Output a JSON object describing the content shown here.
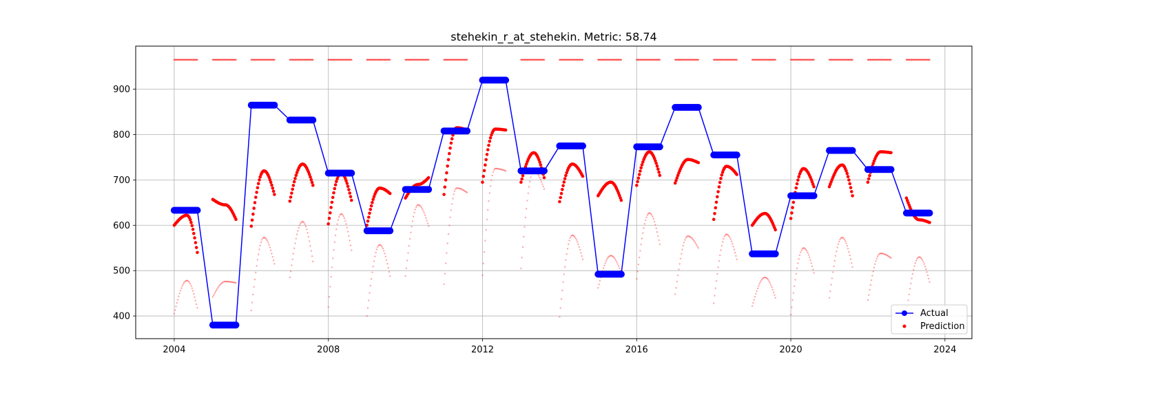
{
  "chart_data": {
    "type": "line",
    "title": "stehekin_r_at_stehekin. Metric: 58.74",
    "xlabel": "",
    "ylabel": "",
    "xlim": [
      2003.0,
      2024.7
    ],
    "ylim": [
      350,
      995
    ],
    "x_ticks": [
      2004,
      2008,
      2012,
      2016,
      2020,
      2024
    ],
    "x_tick_labels": [
      "2004",
      "2008",
      "2012",
      "2016",
      "2020",
      "2024"
    ],
    "y_ticks": [
      400,
      500,
      600,
      700,
      800,
      900
    ],
    "y_tick_labels": [
      "400",
      "500",
      "600",
      "700",
      "800",
      "900"
    ],
    "grid": true,
    "legend_position": "lower-right",
    "legend": [
      "Actual",
      "Prediction"
    ],
    "colors": {
      "actual": "#0000ff",
      "prediction": "#ff0000"
    },
    "actual_series": {
      "name": "Actual",
      "segments": [
        {
          "x_start": 2004.0,
          "x_end": 2004.6,
          "value": 633
        },
        {
          "x_start": 2005.0,
          "x_end": 2005.6,
          "value": 380
        },
        {
          "x_start": 2006.0,
          "x_end": 2006.6,
          "value": 865
        },
        {
          "x_start": 2007.0,
          "x_end": 2007.6,
          "value": 832
        },
        {
          "x_start": 2008.0,
          "x_end": 2008.6,
          "value": 715
        },
        {
          "x_start": 2009.0,
          "x_end": 2009.6,
          "value": 588
        },
        {
          "x_start": 2010.0,
          "x_end": 2010.6,
          "value": 679
        },
        {
          "x_start": 2011.0,
          "x_end": 2011.6,
          "value": 808
        },
        {
          "x_start": 2012.0,
          "x_end": 2012.6,
          "value": 920
        },
        {
          "x_start": 2013.0,
          "x_end": 2013.6,
          "value": 720
        },
        {
          "x_start": 2014.0,
          "x_end": 2014.6,
          "value": 775
        },
        {
          "x_start": 2015.0,
          "x_end": 2015.6,
          "value": 492
        },
        {
          "x_start": 2016.0,
          "x_end": 2016.6,
          "value": 773
        },
        {
          "x_start": 2017.0,
          "x_end": 2017.6,
          "value": 860
        },
        {
          "x_start": 2018.0,
          "x_end": 2018.6,
          "value": 755
        },
        {
          "x_start": 2019.0,
          "x_end": 2019.6,
          "value": 537
        },
        {
          "x_start": 2020.0,
          "x_end": 2020.6,
          "value": 665
        },
        {
          "x_start": 2021.0,
          "x_end": 2021.6,
          "value": 765
        },
        {
          "x_start": 2022.0,
          "x_end": 2022.6,
          "value": 723
        },
        {
          "x_start": 2023.0,
          "x_end": 2023.6,
          "value": 627
        }
      ]
    },
    "prediction_series": {
      "name": "Prediction",
      "upper_band_value": 965,
      "upper_band_years": [
        2004,
        2005,
        2006,
        2007,
        2008,
        2009,
        2010,
        2011,
        2013,
        2014,
        2015,
        2016,
        2017,
        2018,
        2019,
        2020,
        2021,
        2022,
        2023
      ],
      "seasons": [
        {
          "year": 2004,
          "main": [
            600,
            622,
            540
          ],
          "faint": [
            405,
            478,
            418
          ]
        },
        {
          "year": 2005,
          "main": [
            657,
            645,
            613
          ],
          "faint": [
            442,
            476,
            473
          ]
        },
        {
          "year": 2006,
          "main": [
            598,
            720,
            668
          ],
          "faint": [
            412,
            573,
            515
          ]
        },
        {
          "year": 2007,
          "main": [
            653,
            735,
            688
          ],
          "faint": [
            485,
            608,
            520
          ]
        },
        {
          "year": 2008,
          "main": [
            603,
            715,
            655
          ],
          "faint": [
            420,
            625,
            545
          ]
        },
        {
          "year": 2009,
          "main": [
            600,
            682,
            670
          ],
          "faint": [
            400,
            557,
            488
          ]
        },
        {
          "year": 2010,
          "main": [
            660,
            690,
            705
          ],
          "faint": [
            488,
            645,
            598
          ]
        },
        {
          "year": 2011,
          "main": [
            668,
            815,
            810
          ],
          "faint": [
            470,
            682,
            672
          ]
        },
        {
          "year": 2012,
          "main": [
            695,
            812,
            810
          ],
          "faint": [
            490,
            725,
            720
          ]
        },
        {
          "year": 2013,
          "main": [
            695,
            760,
            705
          ],
          "faint": [
            505,
            720,
            680
          ]
        },
        {
          "year": 2014,
          "main": [
            652,
            735,
            708
          ],
          "faint": [
            398,
            578,
            525
          ]
        },
        {
          "year": 2015,
          "main": [
            665,
            695,
            655
          ],
          "faint": [
            462,
            533,
            495
          ]
        },
        {
          "year": 2016,
          "main": [
            688,
            762,
            710
          ],
          "faint": [
            482,
            627,
            558
          ]
        },
        {
          "year": 2017,
          "main": [
            693,
            745,
            738
          ],
          "faint": [
            448,
            576,
            550
          ]
        },
        {
          "year": 2018,
          "main": [
            613,
            730,
            712
          ],
          "faint": [
            428,
            580,
            525
          ]
        },
        {
          "year": 2019,
          "main": [
            600,
            626,
            590
          ],
          "faint": [
            422,
            485,
            440
          ]
        },
        {
          "year": 2020,
          "main": [
            615,
            725,
            685
          ],
          "faint": [
            403,
            550,
            495
          ]
        },
        {
          "year": 2021,
          "main": [
            685,
            733,
            665
          ],
          "faint": [
            440,
            573,
            508
          ]
        },
        {
          "year": 2022,
          "main": [
            695,
            762,
            760
          ],
          "faint": [
            435,
            538,
            528
          ]
        },
        {
          "year": 2023,
          "main": [
            660,
            612,
            606
          ],
          "faint": [
            408,
            530,
            475
          ]
        }
      ]
    }
  }
}
